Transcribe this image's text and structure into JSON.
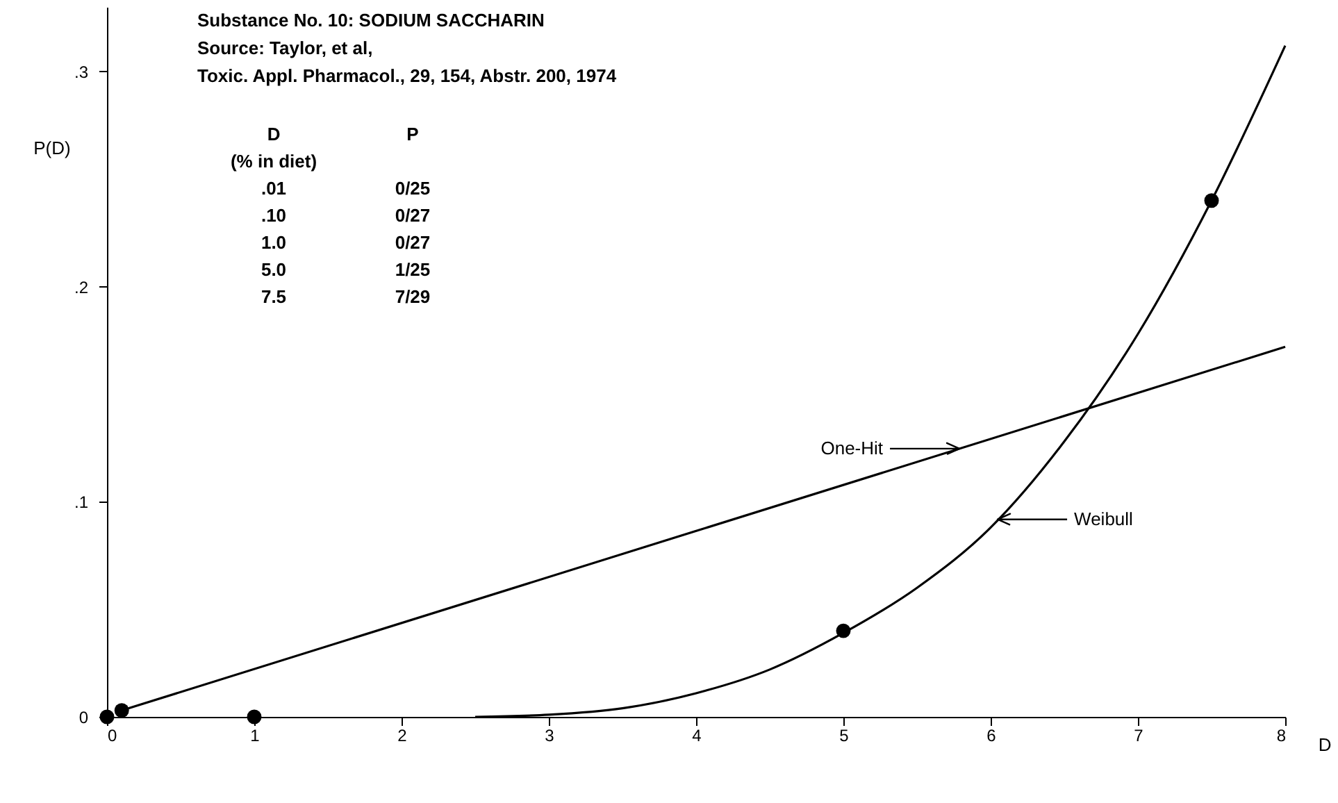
{
  "chart_data": {
    "type": "scatter",
    "title": "Substance No. 10: SODIUM SACCHARIN",
    "xlabel": "D",
    "ylabel": "P(D)",
    "xlim": [
      0,
      8
    ],
    "ylim": [
      0,
      0.33
    ],
    "xticks": [
      0,
      1,
      2,
      3,
      4,
      5,
      6,
      7,
      8
    ],
    "yticks": [
      0,
      {
        "value": 0.1,
        "label": ".1"
      },
      {
        "value": 0.2,
        "label": ".2"
      },
      {
        "value": 0.3,
        "label": ".3"
      }
    ],
    "grid": false,
    "series": [
      {
        "marker": "circle",
        "color": "#000000",
        "x": [
          0,
          0.1,
          1,
          5,
          7.5
        ],
        "values": [
          0,
          0.003,
          0,
          0.04,
          0.24
        ]
      },
      {
        "type": "line",
        "name": "One-Hit",
        "marker": "none",
        "line_style": "solid",
        "color": "#000000",
        "x": [
          0.1,
          8
        ],
        "values": [
          0.003,
          0.172
        ]
      },
      {
        "type": "line",
        "name": "Weibull",
        "marker": "none",
        "line_style": "solid",
        "color": "#000000",
        "x": [
          2.5,
          3,
          3.5,
          4,
          4.5,
          5,
          5.5,
          6,
          6.5,
          7,
          7.5,
          8
        ],
        "values": [
          0,
          0.001,
          0.004,
          0.011,
          0.022,
          0.039,
          0.06,
          0.088,
          0.128,
          0.178,
          0.24,
          0.312
        ]
      }
    ],
    "annotations": [
      "Source: Taylor, et al,",
      "Toxic. Appl. Pharmacol., 29, 154, Abstr. 200, 1974",
      "D",
      "P",
      "(% in diet)",
      ".01",
      "0/25",
      ".10",
      "0/27",
      "1.0",
      "0/27",
      "5.0",
      "1/25",
      "7.5",
      "7/29"
    ]
  }
}
